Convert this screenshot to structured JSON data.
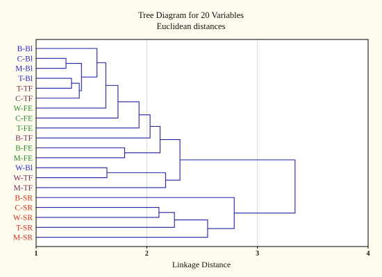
{
  "colors": {
    "background": "#fdfcef",
    "plot_background": "#ffffff",
    "tree_line": "#1f1fa8",
    "grid_line": "#d9d9d9",
    "frame": "#000000",
    "group_bl": "#2a2ad6",
    "group_tf": "#7a2a5a",
    "group_fe": "#2e8b2e",
    "group_sr": "#d12f1f"
  },
  "chart_data": {
    "type": "dendrogram",
    "title": "Tree Diagram for 20  Variables",
    "subtitle": "Euclidean distances",
    "xlabel": "Linkage Distance",
    "xlim": [
      1,
      4
    ],
    "xticks": [
      "1",
      "2",
      "3",
      "4"
    ],
    "grid": "vertical",
    "leaves": [
      {
        "label": "B-Bl",
        "group": "group_bl"
      },
      {
        "label": "C-Bl",
        "group": "group_bl"
      },
      {
        "label": "M-Bl",
        "group": "group_bl"
      },
      {
        "label": "T-Bl",
        "group": "group_bl"
      },
      {
        "label": "T-TF",
        "group": "group_tf"
      },
      {
        "label": "C-TF",
        "group": "group_tf"
      },
      {
        "label": "W-FE",
        "group": "group_fe"
      },
      {
        "label": "C-FE",
        "group": "group_fe"
      },
      {
        "label": "T-FE",
        "group": "group_fe"
      },
      {
        "label": "B-TF",
        "group": "group_tf"
      },
      {
        "label": "B-FE",
        "group": "group_fe"
      },
      {
        "label": "M-FE",
        "group": "group_fe"
      },
      {
        "label": "W-Bl",
        "group": "group_bl"
      },
      {
        "label": "W-TF",
        "group": "group_tf"
      },
      {
        "label": "M-TF",
        "group": "group_tf"
      },
      {
        "label": "B-SR",
        "group": "group_sr"
      },
      {
        "label": "C-SR",
        "group": "group_sr"
      },
      {
        "label": "W-SR",
        "group": "group_sr"
      },
      {
        "label": "T-SR",
        "group": "group_sr"
      },
      {
        "label": "M-SR",
        "group": "group_sr"
      }
    ],
    "merges": [
      {
        "id": "m1",
        "a": "C-Bl",
        "b": "M-Bl",
        "distance": 1.27
      },
      {
        "id": "m2",
        "a": "T-Bl",
        "b": "T-TF",
        "distance": 1.32
      },
      {
        "id": "m3",
        "a": "m2",
        "b": "C-TF",
        "distance": 1.39
      },
      {
        "id": "m4",
        "a": "m1",
        "b": "m3",
        "distance": 1.41
      },
      {
        "id": "m5",
        "a": "B-Bl",
        "b": "m4",
        "distance": 1.55
      },
      {
        "id": "m6",
        "a": "m5",
        "b": "W-FE",
        "distance": 1.63
      },
      {
        "id": "m7",
        "a": "m6",
        "b": "C-FE",
        "distance": 1.74
      },
      {
        "id": "m8",
        "a": "m7",
        "b": "T-FE",
        "distance": 1.93
      },
      {
        "id": "m9",
        "a": "m8",
        "b": "B-TF",
        "distance": 2.03
      },
      {
        "id": "m10",
        "a": "B-FE",
        "b": "M-FE",
        "distance": 1.8
      },
      {
        "id": "m11",
        "a": "m9",
        "b": "m10",
        "distance": 2.12
      },
      {
        "id": "m12",
        "a": "W-Bl",
        "b": "W-TF",
        "distance": 1.64
      },
      {
        "id": "m13",
        "a": "m12",
        "b": "M-TF",
        "distance": 2.17
      },
      {
        "id": "m14",
        "a": "m11",
        "b": "m13",
        "distance": 2.3
      },
      {
        "id": "m15",
        "a": "C-SR",
        "b": "W-SR",
        "distance": 2.11
      },
      {
        "id": "m16",
        "a": "m15",
        "b": "T-SR",
        "distance": 2.25
      },
      {
        "id": "m17",
        "a": "m16",
        "b": "M-SR",
        "distance": 2.55
      },
      {
        "id": "m18",
        "a": "B-SR",
        "b": "m17",
        "distance": 2.79
      },
      {
        "id": "m19",
        "a": "m14",
        "b": "m18",
        "distance": 3.34
      }
    ]
  }
}
